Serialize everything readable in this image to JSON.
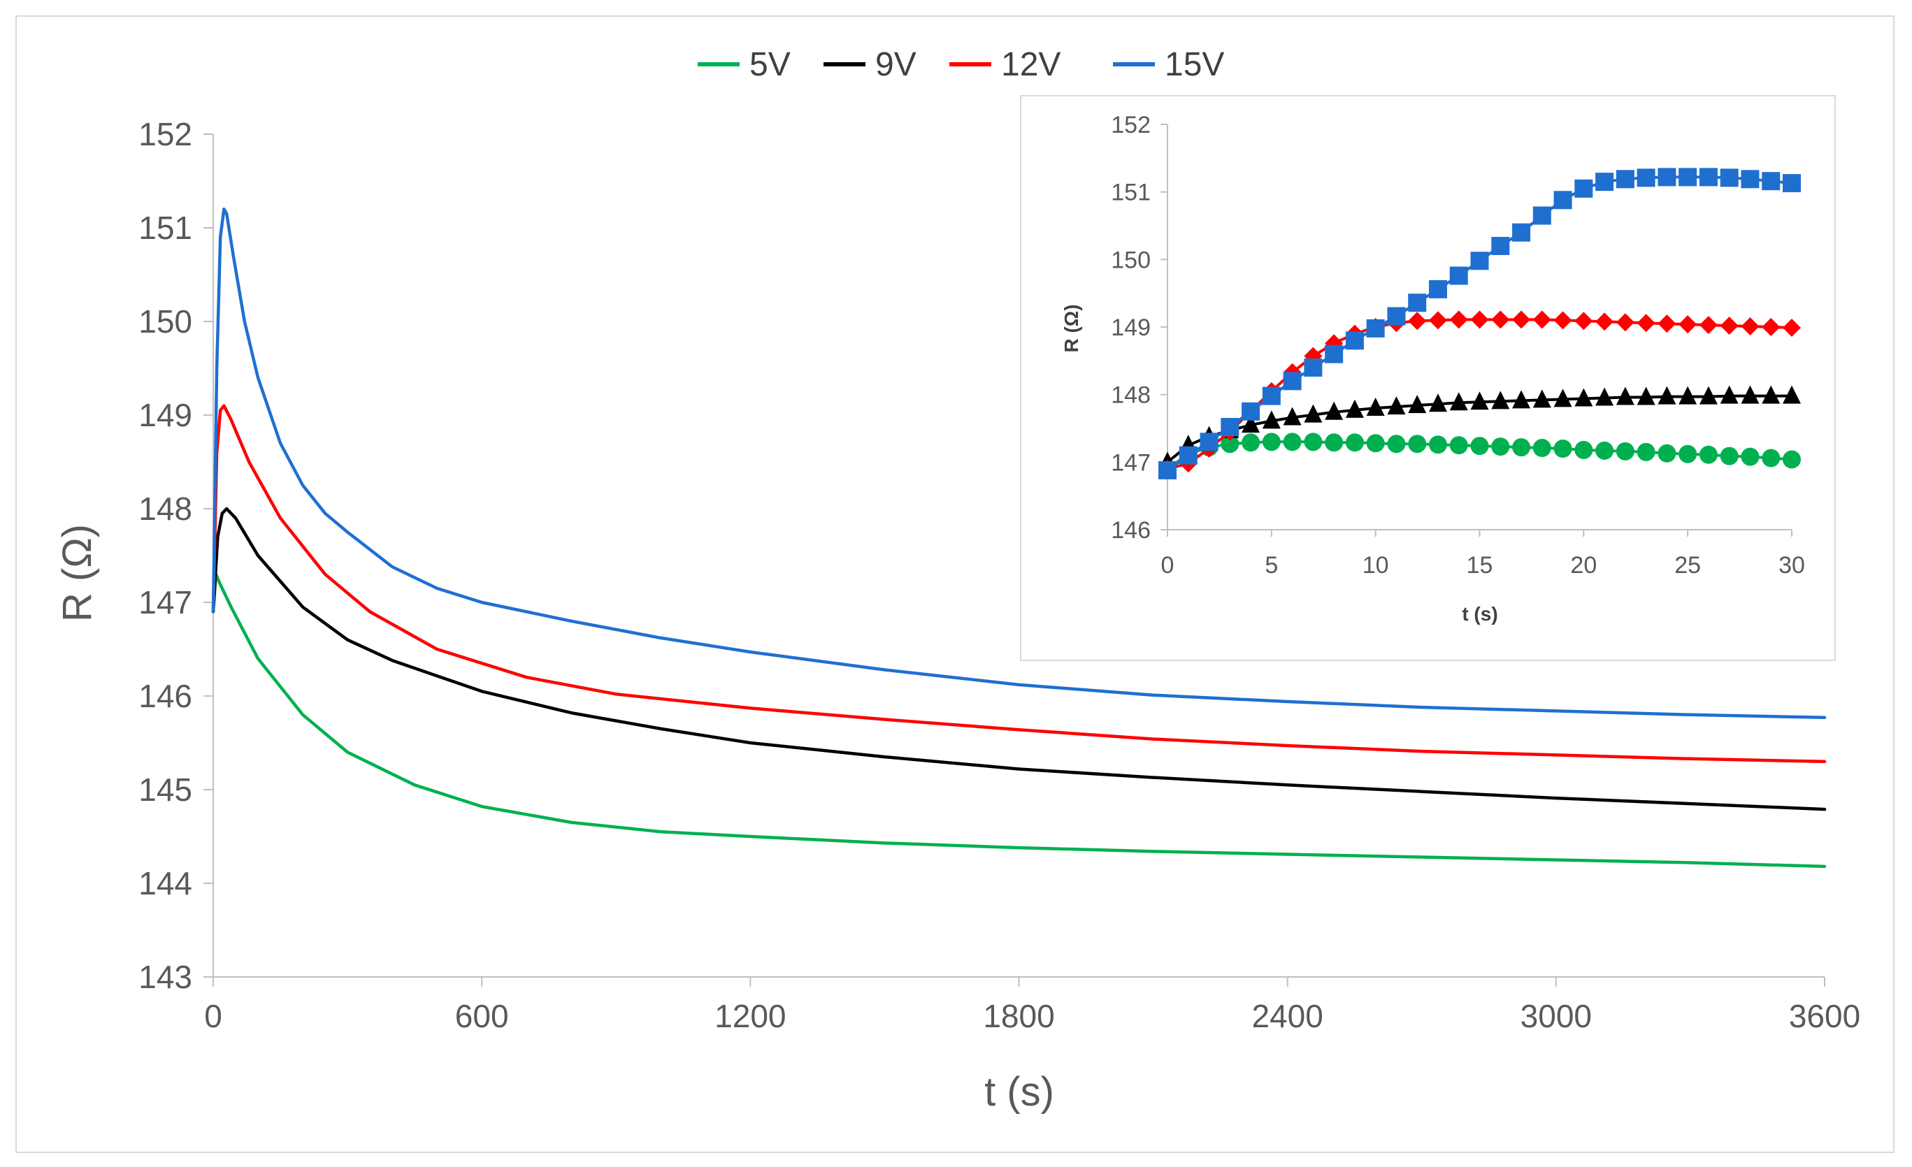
{
  "chart_data": [
    {
      "type": "line",
      "title": "",
      "xlabel": "t (s)",
      "ylabel": "R (Ω)",
      "xlim": [
        0,
        3600
      ],
      "ylim": [
        143,
        152
      ],
      "xticks": [
        0,
        600,
        1200,
        1800,
        2400,
        3000,
        3600
      ],
      "yticks": [
        143,
        144,
        145,
        146,
        147,
        148,
        149,
        150,
        151,
        152
      ],
      "xtick_labels": [
        "0",
        "600",
        "1200",
        "1800",
        "2400",
        "3000",
        "3600"
      ],
      "ytick_labels": [
        "143",
        "144",
        "145",
        "146",
        "147",
        "148",
        "149",
        "150",
        "151",
        "152"
      ],
      "legend": {
        "position": "top",
        "entries": [
          "5V",
          "9V",
          "12V",
          "15V"
        ]
      },
      "grid": false,
      "series": [
        {
          "name": "5V",
          "color": "#00b050",
          "x": [
            0,
            6,
            15,
            40,
            100,
            200,
            300,
            450,
            600,
            800,
            1000,
            1200,
            1500,
            1800,
            2100,
            2400,
            2700,
            3000,
            3300,
            3600
          ],
          "y": [
            146.9,
            147.3,
            147.2,
            146.95,
            146.4,
            145.8,
            145.4,
            145.05,
            144.82,
            144.65,
            144.55,
            144.5,
            144.43,
            144.38,
            144.34,
            144.31,
            144.28,
            144.25,
            144.22,
            144.18
          ]
        },
        {
          "name": "9V",
          "color": "#000000",
          "x": [
            0,
            10,
            20,
            30,
            50,
            100,
            200,
            300,
            400,
            600,
            800,
            1000,
            1200,
            1500,
            1800,
            2100,
            2400,
            2700,
            3000,
            3300,
            3600
          ],
          "y": [
            146.9,
            147.7,
            147.95,
            148.0,
            147.9,
            147.5,
            146.95,
            146.6,
            146.38,
            146.05,
            145.82,
            145.65,
            145.5,
            145.35,
            145.22,
            145.13,
            145.05,
            144.98,
            144.91,
            144.85,
            144.79
          ]
        },
        {
          "name": "12V",
          "color": "#ff0000",
          "x": [
            0,
            8,
            16,
            24,
            40,
            80,
            150,
            250,
            350,
            500,
            700,
            900,
            1200,
            1500,
            1800,
            2100,
            2400,
            2700,
            3000,
            3300,
            3600
          ],
          "y": [
            146.9,
            148.6,
            149.05,
            149.1,
            148.95,
            148.5,
            147.9,
            147.3,
            146.9,
            146.5,
            146.2,
            146.02,
            145.87,
            145.75,
            145.64,
            145.54,
            145.47,
            145.41,
            145.37,
            145.33,
            145.3
          ]
        },
        {
          "name": "15V",
          "color": "#1f6fd1",
          "x": [
            0,
            8,
            16,
            24,
            30,
            45,
            70,
            100,
            150,
            200,
            250,
            300,
            400,
            500,
            600,
            800,
            1000,
            1200,
            1500,
            1800,
            2100,
            2400,
            2700,
            3000,
            3300,
            3600
          ],
          "y": [
            146.9,
            149.5,
            150.9,
            151.2,
            151.15,
            150.7,
            150.0,
            149.4,
            148.7,
            148.25,
            147.95,
            147.75,
            147.38,
            147.15,
            147.0,
            146.8,
            146.62,
            146.47,
            146.28,
            146.12,
            146.01,
            145.94,
            145.88,
            145.84,
            145.8,
            145.77
          ]
        }
      ]
    },
    {
      "type": "scatter",
      "title": "",
      "xlabel": "t (s)",
      "ylabel": "R (Ω)",
      "xlim": [
        0,
        30
      ],
      "ylim": [
        146,
        152
      ],
      "xticks": [
        0,
        5,
        10,
        15,
        20,
        25,
        30
      ],
      "yticks": [
        146,
        147,
        148,
        149,
        150,
        151,
        152
      ],
      "xtick_labels": [
        "0",
        "5",
        "10",
        "15",
        "20",
        "25",
        "30"
      ],
      "ytick_labels": [
        "146",
        "147",
        "148",
        "149",
        "150",
        "151",
        "152"
      ],
      "grid": false,
      "series": [
        {
          "name": "5V",
          "color": "#00b050",
          "marker": "circle",
          "x": [
            0,
            1,
            2,
            3,
            4,
            5,
            6,
            7,
            8,
            9,
            10,
            11,
            12,
            13,
            14,
            15,
            16,
            17,
            18,
            19,
            20,
            21,
            22,
            23,
            24,
            25,
            26,
            27,
            28,
            29,
            30
          ],
          "y": [
            146.9,
            147.12,
            147.22,
            147.27,
            147.29,
            147.3,
            147.3,
            147.3,
            147.29,
            147.29,
            147.28,
            147.27,
            147.27,
            147.26,
            147.25,
            147.24,
            147.23,
            147.22,
            147.21,
            147.2,
            147.18,
            147.17,
            147.16,
            147.15,
            147.13,
            147.12,
            147.11,
            147.09,
            147.08,
            147.06,
            147.04
          ]
        },
        {
          "name": "9V",
          "color": "#000000",
          "marker": "triangle",
          "x": [
            0,
            1,
            2,
            3,
            4,
            5,
            6,
            7,
            8,
            9,
            10,
            11,
            12,
            13,
            14,
            15,
            16,
            17,
            18,
            19,
            20,
            21,
            22,
            23,
            24,
            25,
            26,
            27,
            28,
            29,
            30
          ],
          "y": [
            147.0,
            147.25,
            147.38,
            147.47,
            147.55,
            147.61,
            147.66,
            147.7,
            147.74,
            147.77,
            147.8,
            147.82,
            147.84,
            147.86,
            147.88,
            147.89,
            147.9,
            147.91,
            147.92,
            147.93,
            147.94,
            147.95,
            147.96,
            147.96,
            147.97,
            147.97,
            147.97,
            147.98,
            147.98,
            147.98,
            147.98
          ]
        },
        {
          "name": "12V",
          "color": "#ff0000",
          "marker": "diamond",
          "x": [
            0,
            1,
            2,
            3,
            4,
            5,
            6,
            7,
            8,
            9,
            10,
            11,
            12,
            13,
            14,
            15,
            16,
            17,
            18,
            19,
            20,
            21,
            22,
            23,
            24,
            25,
            26,
            27,
            28,
            29,
            30
          ],
          "y": [
            146.9,
            146.98,
            147.2,
            147.45,
            147.75,
            148.05,
            148.33,
            148.57,
            148.76,
            148.9,
            149.0,
            149.06,
            149.09,
            149.1,
            149.11,
            149.11,
            149.11,
            149.11,
            149.11,
            149.1,
            149.09,
            149.08,
            149.07,
            149.06,
            149.05,
            149.04,
            149.03,
            149.02,
            149.01,
            149.0,
            148.99
          ]
        },
        {
          "name": "15V",
          "color": "#1f6fd1",
          "marker": "square",
          "x": [
            0,
            1,
            2,
            3,
            4,
            5,
            6,
            7,
            8,
            9,
            10,
            11,
            12,
            13,
            14,
            15,
            16,
            17,
            18,
            19,
            20,
            21,
            22,
            23,
            24,
            25,
            26,
            27,
            28,
            29,
            30
          ],
          "y": [
            146.88,
            147.1,
            147.3,
            147.52,
            147.75,
            147.98,
            148.2,
            148.4,
            148.6,
            148.8,
            148.98,
            149.16,
            149.36,
            149.56,
            149.76,
            149.98,
            150.2,
            150.4,
            150.65,
            150.88,
            151.05,
            151.15,
            151.19,
            151.21,
            151.22,
            151.22,
            151.22,
            151.21,
            151.19,
            151.16,
            151.13
          ]
        }
      ]
    }
  ]
}
